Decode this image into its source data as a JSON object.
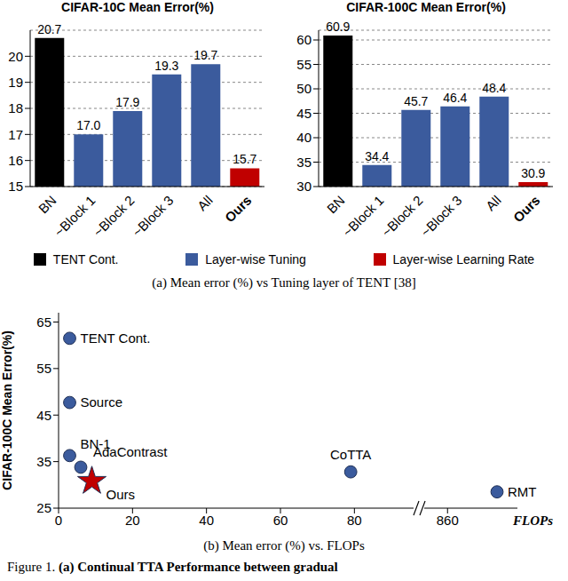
{
  "chart_data": [
    {
      "type": "bar",
      "title": "CIFAR-10C Mean Error(%)",
      "categories": [
        "BN",
        "~Block 1",
        "~Block 2",
        "~Block 3",
        "All",
        "Ours"
      ],
      "values": [
        20.7,
        17.0,
        17.9,
        19.3,
        19.7,
        15.7
      ],
      "value_labels": [
        "20.7",
        "17.0",
        "17.9",
        "19.3",
        "19.7",
        "15.7"
      ],
      "colors": [
        "#000000",
        "#3b5b9d",
        "#3b5b9d",
        "#3b5b9d",
        "#3b5b9d",
        "#c00000"
      ],
      "ylim": [
        15,
        21
      ],
      "yticks": [
        15,
        16,
        17,
        18,
        19,
        20
      ],
      "grid": true,
      "data_labels": true
    },
    {
      "type": "bar",
      "title": "CIFAR-100C Mean Error(%)",
      "categories": [
        "BN",
        "~Block 1",
        "~Block 2",
        "~Block 3",
        "All",
        "Ours"
      ],
      "values": [
        60.9,
        34.4,
        45.7,
        46.4,
        48.4,
        30.9
      ],
      "value_labels": [
        "60.9",
        "34.4",
        "45.7",
        "46.4",
        "48.4",
        "30.9"
      ],
      "colors": [
        "#000000",
        "#3b5b9d",
        "#3b5b9d",
        "#3b5b9d",
        "#3b5b9d",
        "#c00000"
      ],
      "ylim": [
        30,
        62
      ],
      "yticks": [
        30,
        35,
        40,
        45,
        50,
        55,
        60
      ],
      "grid": true,
      "data_labels": true
    },
    {
      "type": "scatter",
      "y_label": "CIFAR-100C Mean Error(%)",
      "x_label": "FLOPs",
      "ylim": [
        25,
        67
      ],
      "yticks": [
        25,
        35,
        45,
        55,
        65
      ],
      "x_segments": [
        {
          "xlim": [
            0,
            96
          ],
          "xticks": [
            0,
            20,
            40,
            60,
            80
          ]
        },
        {
          "xlim": [
            852,
            884
          ],
          "xticks": [
            860
          ]
        }
      ],
      "points": [
        {
          "name": "TENT Cont.",
          "x": 3,
          "y": 61.5,
          "marker": "circle",
          "color": "#3b5b9d"
        },
        {
          "name": "Source",
          "x": 3,
          "y": 47.7,
          "marker": "circle",
          "color": "#3b5b9d"
        },
        {
          "name": "BN-1",
          "x": 3,
          "y": 36.3,
          "marker": "circle",
          "color": "#3b5b9d"
        },
        {
          "name": "AdaContrast",
          "x": 6,
          "y": 33.8,
          "marker": "circle",
          "color": "#3b5b9d"
        },
        {
          "name": "Ours",
          "x": 9,
          "y": 30.8,
          "marker": "star",
          "color": "#c00000"
        },
        {
          "name": "CoTTA",
          "x": 79,
          "y": 32.8,
          "marker": "circle",
          "color": "#3b5b9d"
        },
        {
          "name": "RMT",
          "x": 877,
          "y": 28.5,
          "marker": "circle",
          "color": "#3b5b9d"
        }
      ]
    }
  ],
  "legend_entries": [
    {
      "name": "TENT Cont.",
      "color": "#000000"
    },
    {
      "name": "Layer-wise Tuning",
      "color": "#3b5b9d"
    },
    {
      "name": "Layer-wise Learning Rate",
      "color": "#c00000"
    }
  ],
  "captions": [
    "(a) Mean error (%) vs Tuning layer of TENT [38]",
    "(b) Mean error (%) vs. FLOPs"
  ],
  "figure_caption": {
    "label": "Figure 1.",
    "text": "(a) Continual TTA Performance between gradual"
  }
}
